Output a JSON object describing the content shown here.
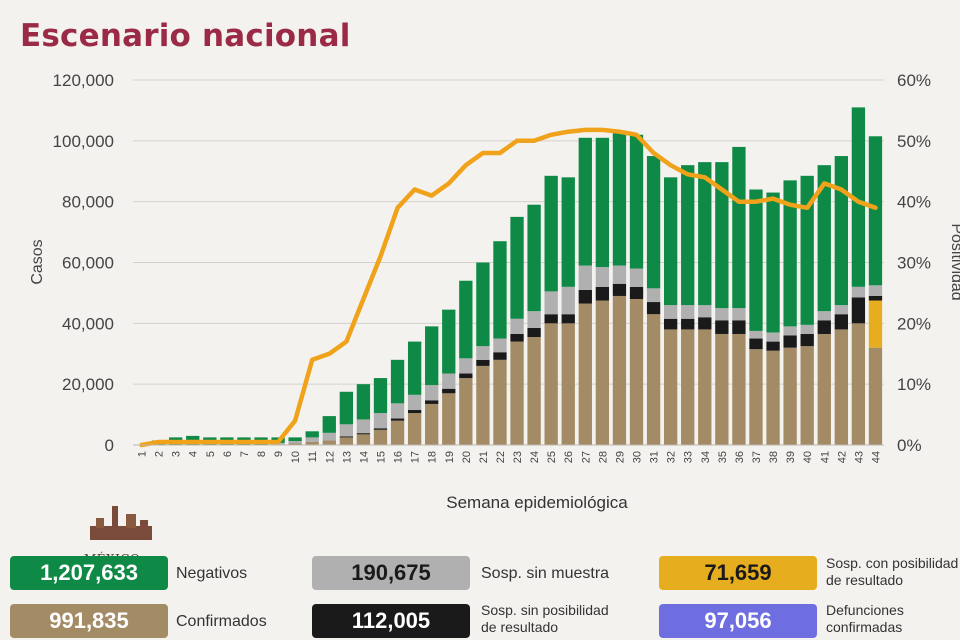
{
  "header": {
    "title": "Escenario nacional"
  },
  "chart_data": {
    "type": "bar",
    "title": "Escenario nacional",
    "xlabel": "Semana epidemiológica",
    "ylabel": "Casos",
    "y2label": "Positividad",
    "ylim": [
      0,
      120000
    ],
    "y2lim": [
      0,
      60
    ],
    "yticks": [
      "0",
      "20,000",
      "40,000",
      "60,000",
      "80,000",
      "100,000",
      "120,000"
    ],
    "y2ticks": [
      "0%",
      "10%",
      "20%",
      "30%",
      "40%",
      "50%",
      "60%"
    ],
    "categories": [
      "1",
      "2",
      "3",
      "4",
      "5",
      "6",
      "7",
      "8",
      "9",
      "10",
      "11",
      "12",
      "13",
      "14",
      "15",
      "16",
      "17",
      "18",
      "19",
      "20",
      "21",
      "22",
      "23",
      "24",
      "25",
      "26",
      "27",
      "28",
      "29",
      "30",
      "31",
      "32",
      "33",
      "34",
      "35",
      "36",
      "37",
      "38",
      "39",
      "40",
      "41",
      "42",
      "43",
      "44"
    ],
    "stacked": true,
    "series": [
      {
        "name": "Confirmados",
        "color": "#a38b66",
        "values": [
          0,
          0,
          0,
          0,
          0,
          0,
          0,
          0,
          200,
          500,
          1000,
          1500,
          2500,
          3500,
          5000,
          8000,
          10500,
          13500,
          17000,
          22000,
          26000,
          28000,
          34000,
          35500,
          40000,
          40000,
          46500,
          47500,
          49000,
          48000,
          43000,
          38000,
          38000,
          38000,
          36500,
          36500,
          31500,
          31000,
          32000,
          32500,
          36500,
          38000,
          40000,
          32000
        ]
      },
      {
        "name": "Sosp. con posibilidad de resultado",
        "color": "#e6ad1e",
        "values": [
          0,
          0,
          0,
          0,
          0,
          0,
          0,
          0,
          0,
          0,
          0,
          0,
          0,
          0,
          0,
          0,
          0,
          0,
          0,
          0,
          0,
          0,
          0,
          0,
          0,
          0,
          0,
          0,
          0,
          0,
          0,
          0,
          0,
          0,
          0,
          0,
          0,
          0,
          0,
          0,
          0,
          0,
          0,
          15500
        ]
      },
      {
        "name": "Sosp. sin posibilidad de resultado",
        "color": "#1a1a1a",
        "values": [
          0,
          0,
          0,
          0,
          0,
          0,
          0,
          0,
          0,
          0,
          0,
          0,
          300,
          400,
          500,
          700,
          1000,
          1200,
          1500,
          1500,
          2000,
          2500,
          2500,
          3000,
          3000,
          3000,
          4500,
          4500,
          4000,
          4000,
          4000,
          3500,
          3500,
          4000,
          4500,
          4500,
          3500,
          3000,
          4000,
          4000,
          4500,
          5000,
          8500,
          1500
        ]
      },
      {
        "name": "Sosp. sin muestra",
        "color": "#b0b0b0",
        "values": [
          0,
          0,
          0,
          0,
          0,
          0,
          0,
          0,
          500,
          800,
          1500,
          2500,
          4000,
          4500,
          5000,
          5000,
          5000,
          5000,
          5000,
          5000,
          4500,
          4500,
          5000,
          5500,
          7500,
          9000,
          8000,
          6500,
          6000,
          6000,
          4500,
          4500,
          4500,
          4000,
          4000,
          4000,
          2500,
          3000,
          3000,
          3000,
          3000,
          3000,
          3500,
          3500
        ]
      },
      {
        "name": "Negativos",
        "color": "#0e8a46",
        "values": [
          0,
          1500,
          2500,
          3000,
          2500,
          2500,
          2500,
          2500,
          1800,
          1200,
          2000,
          5500,
          10700,
          11600,
          11500,
          14300,
          17500,
          19300,
          21000,
          25500,
          27500,
          32000,
          33500,
          35000,
          38000,
          36000,
          42000,
          42500,
          44000,
          44000,
          43500,
          42000,
          46000,
          47000,
          48000,
          53000,
          46500,
          46000,
          48000,
          49000,
          48000,
          49000,
          59000,
          49000
        ]
      }
    ],
    "line": {
      "name": "Positividad",
      "color": "#f0a21a",
      "axis": "right",
      "values": [
        0,
        0.5,
        0.5,
        0.5,
        0.5,
        0.5,
        0.5,
        0.5,
        0.5,
        4,
        14,
        15,
        17,
        24,
        31,
        39,
        42,
        41,
        43,
        46,
        48,
        48,
        50,
        50,
        51,
        51.5,
        51.8,
        51.8,
        51.5,
        51,
        48,
        46,
        44.5,
        44,
        42,
        40,
        40,
        40.5,
        39.5,
        39,
        43,
        42,
        40,
        39
      ]
    }
  },
  "legend": {
    "negativos": {
      "value": "1,207,633",
      "label": "Negativos",
      "color": "#0e8a46"
    },
    "confirmados": {
      "value": "991,835",
      "label": "Confirmados",
      "color": "#a38b66"
    },
    "sosp_sin_muestra": {
      "value": "190,675",
      "label": "Sosp. sin muestra",
      "color": "#b0b0b0"
    },
    "sosp_sin_posibilidad": {
      "value": "112,005",
      "label_line1": "Sosp. sin posibilidad",
      "label_line2": "de resultado",
      "color": "#1a1a1a"
    },
    "sosp_con_posibilidad": {
      "value": "71,659",
      "label_line1": "Sosp. con posibilidad",
      "label_line2": "de resultado",
      "color": "#e6ad1e"
    },
    "defunciones": {
      "value": "97,056",
      "label_line1": "Defunciones",
      "label_line2": "confirmadas",
      "color": "#6e6ee0"
    }
  },
  "logo": {
    "text": "MÉXICO"
  }
}
